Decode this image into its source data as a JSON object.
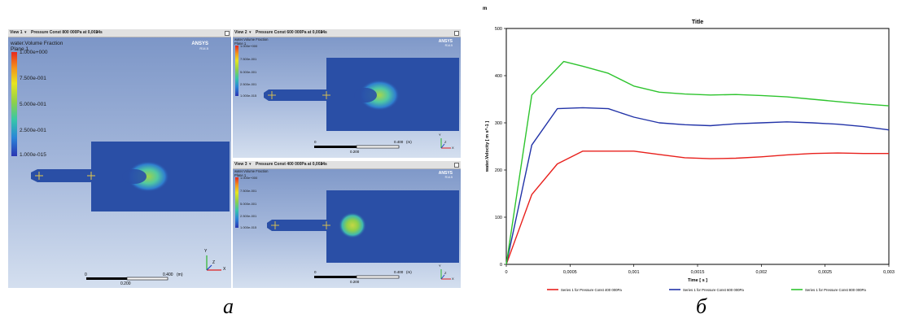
{
  "panel_a": {
    "caption": "а",
    "colors": {
      "fluid": "#2a4fa6",
      "jet_core": "#b9d94e",
      "jet_mid": "#4ec6a6"
    },
    "icon_axes": "axis-triad-icon",
    "view1": {
      "tab": "View 1",
      "title": "Pressure Const 800 000Pa at 0,0024s",
      "legend_title": "water.Volume Fraction",
      "legend_plane": "Plane 1",
      "legend_ticks": [
        "1.000e+000",
        "7.500e-001",
        "5.000e-001",
        "2.500e-001",
        "1.000e-015"
      ],
      "brand": "ANSYS",
      "brand_version": "R14.5",
      "scale_left": "0",
      "scale_right": "0.400",
      "scale_unit": "(m)",
      "scale_mid": "0.200",
      "axis_x": "X",
      "axis_y": "Y",
      "axis_z": "Z"
    },
    "view2": {
      "tab": "View 2",
      "title": "Pressure Const 600 000Pa at 0,0024s",
      "legend_title": "water.Volume Fraction",
      "legend_plane": "Plane 1",
      "legend_ticks": [
        "1.000e+000",
        "7.500e-001",
        "5.000e-001",
        "2.500e-001",
        "1.000e-015"
      ],
      "brand": "ANSYS",
      "brand_version": "R14.5",
      "scale_left": "0",
      "scale_right": "0.400",
      "scale_unit": "(m)",
      "scale_mid": "0.200",
      "axis_x": "X",
      "axis_y": "Y",
      "axis_z": "Z"
    },
    "view3": {
      "tab": "View 3",
      "title": "Pressure Const 400 000Pa at 0,0024s",
      "legend_title": "water.Volume Fraction",
      "legend_plane": "Plane 1",
      "legend_ticks": [
        "1.000e+000",
        "7.500e-001",
        "5.000e-001",
        "2.500e-001",
        "1.000e-015"
      ],
      "brand": "ANSYS",
      "brand_version": "R14.5",
      "scale_left": "0",
      "scale_right": "0.400",
      "scale_unit": "(m)",
      "scale_mid": "0.200",
      "axis_x": "X",
      "axis_y": "Y",
      "axis_z": "Z"
    }
  },
  "panel_b": {
    "caption": "б",
    "corner_mark": "m"
  },
  "chart_data": {
    "type": "line",
    "title": "Title",
    "xlabel": "Time [ s ]",
    "ylabel": "water.Velocity [ m s^-1 ]",
    "xlim": [
      0,
      0.003
    ],
    "ylim": [
      0,
      500
    ],
    "x_ticks": [
      0,
      0.0005,
      0.001,
      0.0015,
      0.002,
      0.0025,
      0.003
    ],
    "x_tick_labels": [
      "0",
      "0,0005",
      "0,001",
      "0,0015",
      "0,002",
      "0,0025",
      "0,003"
    ],
    "y_ticks": [
      0,
      100,
      200,
      300,
      400,
      500
    ],
    "y_tick_labels": [
      "0",
      "100",
      "200",
      "300",
      "400",
      "500"
    ],
    "grid": true,
    "legend_position": "bottom",
    "series": [
      {
        "name": "Series 1 for Pressure Const 400 000Pa",
        "color": "#e8201c",
        "points": [
          [
            0,
            0
          ],
          [
            0.0002,
            148
          ],
          [
            0.0004,
            213
          ],
          [
            0.0006,
            240
          ],
          [
            0.0008,
            240
          ],
          [
            0.001,
            240
          ],
          [
            0.0012,
            233
          ],
          [
            0.0014,
            226
          ],
          [
            0.0016,
            224
          ],
          [
            0.0018,
            225
          ],
          [
            0.002,
            228
          ],
          [
            0.0022,
            232
          ],
          [
            0.0024,
            235
          ],
          [
            0.0026,
            236
          ],
          [
            0.0028,
            235
          ],
          [
            0.003,
            235
          ]
        ]
      },
      {
        "name": "Series 1 for Pressure Const 600 000Pa",
        "color": "#2233a8",
        "points": [
          [
            0,
            0
          ],
          [
            0.0002,
            253
          ],
          [
            0.0004,
            330
          ],
          [
            0.0006,
            332
          ],
          [
            0.0008,
            330
          ],
          [
            0.001,
            312
          ],
          [
            0.0012,
            300
          ],
          [
            0.0014,
            296
          ],
          [
            0.0016,
            294
          ],
          [
            0.0018,
            298
          ],
          [
            0.002,
            300
          ],
          [
            0.0022,
            302
          ],
          [
            0.0024,
            300
          ],
          [
            0.0026,
            297
          ],
          [
            0.0028,
            292
          ],
          [
            0.003,
            285
          ]
        ]
      },
      {
        "name": "Series 1 for Pressure Const 800 000Pa",
        "color": "#2ec42e",
        "points": [
          [
            0,
            0
          ],
          [
            0.0002,
            359
          ],
          [
            0.00045,
            430
          ],
          [
            0.0006,
            420
          ],
          [
            0.0008,
            405
          ],
          [
            0.001,
            378
          ],
          [
            0.0012,
            365
          ],
          [
            0.0014,
            361
          ],
          [
            0.0016,
            359
          ],
          [
            0.0018,
            360
          ],
          [
            0.002,
            358
          ],
          [
            0.0022,
            355
          ],
          [
            0.0024,
            350
          ],
          [
            0.0026,
            345
          ],
          [
            0.0028,
            340
          ],
          [
            0.003,
            336
          ]
        ]
      }
    ]
  }
}
